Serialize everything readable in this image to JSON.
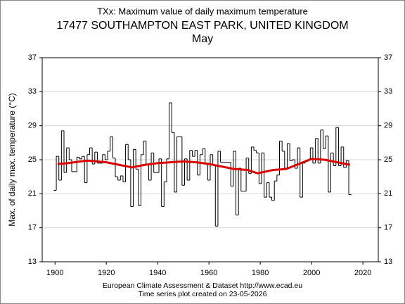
{
  "chart_data": {
    "type": "step",
    "title": "TXx: Maximum value of daily maximum temperature",
    "subtitle": "17477 SOUTHAMPTON EAST PARK, UNITED KINGDOM",
    "period": "May",
    "y_label": "Max. of daily max. temperature (°C)",
    "footer": [
      "European Climate Assessment & Dataset  http://www.ecad.eu",
      "Time series plot created on 23-05-2026"
    ],
    "xlim": [
      1895,
      2026
    ],
    "ylim": [
      13,
      37
    ],
    "xticks": [
      1900,
      1920,
      1940,
      1960,
      1980,
      2000,
      2020
    ],
    "yticks": [
      13,
      17,
      21,
      25,
      29,
      33,
      37
    ],
    "grid": true,
    "series": [
      {
        "color": "#000000",
        "x": [
          1900,
          1901,
          1902,
          1903,
          1904,
          1905,
          1906,
          1907,
          1908,
          1909,
          1910,
          1911,
          1912,
          1913,
          1914,
          1915,
          1916,
          1917,
          1918,
          1919,
          1920,
          1921,
          1922,
          1923,
          1924,
          1925,
          1926,
          1927,
          1928,
          1929,
          1930,
          1931,
          1932,
          1933,
          1934,
          1935,
          1936,
          1937,
          1938,
          1939,
          1940,
          1941,
          1942,
          1943,
          1944,
          1945,
          1946,
          1947,
          1948,
          1949,
          1950,
          1951,
          1952,
          1953,
          1954,
          1955,
          1956,
          1957,
          1958,
          1959,
          1960,
          1961,
          1962,
          1963,
          1964,
          1965,
          1966,
          1967,
          1968,
          1969,
          1970,
          1971,
          1972,
          1973,
          1974,
          1975,
          1976,
          1977,
          1978,
          1979,
          1980,
          1981,
          1982,
          1983,
          1984,
          1985,
          1986,
          1987,
          1988,
          1989,
          1990,
          1991,
          1992,
          1993,
          1994,
          1995,
          1996,
          1997,
          1998,
          1999,
          2000,
          2001,
          2002,
          2003,
          2004,
          2005,
          2006,
          2007,
          2008,
          2009,
          2010,
          2011,
          2012,
          2013,
          2014,
          2015
        ],
        "values": [
          21.4,
          25.4,
          22.6,
          28.4,
          23.5,
          26.4,
          25.0,
          23.6,
          23.6,
          25.3,
          25.1,
          25.4,
          22.3,
          25.6,
          26.4,
          24.5,
          25.9,
          24.6,
          24.6,
          25.6,
          25.0,
          26.0,
          27.7,
          25.2,
          23.0,
          22.6,
          23.1,
          22.4,
          26.8,
          25.0,
          19.5,
          26.2,
          23.9,
          19.6,
          25.6,
          27.2,
          24.4,
          22.6,
          25.8,
          23.5,
          23.5,
          25.1,
          19.5,
          22.4,
          25.1,
          31.7,
          28.2,
          21.2,
          27.7,
          27.7,
          22.0,
          25.1,
          22.6,
          26.1,
          25.4,
          26.1,
          23.2,
          25.6,
          26.3,
          24.6,
          22.6,
          25.6,
          24.4,
          17.2,
          26.0,
          24.7,
          24.7,
          24.7,
          24.7,
          21.9,
          26.0,
          18.5,
          24.0,
          21.3,
          21.3,
          25.2,
          23.4,
          26.5,
          26.1,
          25.8,
          22.2,
          25.8,
          20.6,
          22.3,
          20.6,
          20.2,
          22.5,
          23.2,
          27.2,
          26.0,
          24.0,
          26.9,
          24.9,
          25.0,
          24.0,
          26.4,
          20.6,
          24.6,
          24.8,
          25.0,
          26.4,
          24.6,
          27.5,
          24.6,
          28.5,
          26.3,
          27.8,
          21.2,
          25.8,
          24.3,
          28.8,
          24.3,
          26.5,
          24.1,
          24.9,
          20.9
        ]
      },
      {
        "color": "#dd0000",
        "x": [
          1901,
          1905,
          1910,
          1913,
          1920,
          1925,
          1930,
          1935,
          1940,
          1945,
          1950,
          1955,
          1960,
          1965,
          1970,
          1975,
          1979,
          1985,
          1990,
          1995,
          2000,
          2005,
          2010,
          2015
        ],
        "values": [
          24.5,
          24.6,
          24.8,
          24.9,
          24.7,
          24.4,
          24.1,
          24.4,
          24.6,
          24.7,
          24.8,
          24.7,
          24.5,
          24.2,
          23.9,
          23.8,
          23.4,
          23.8,
          23.9,
          24.5,
          25.1,
          25.0,
          24.7,
          24.4
        ]
      }
    ]
  }
}
